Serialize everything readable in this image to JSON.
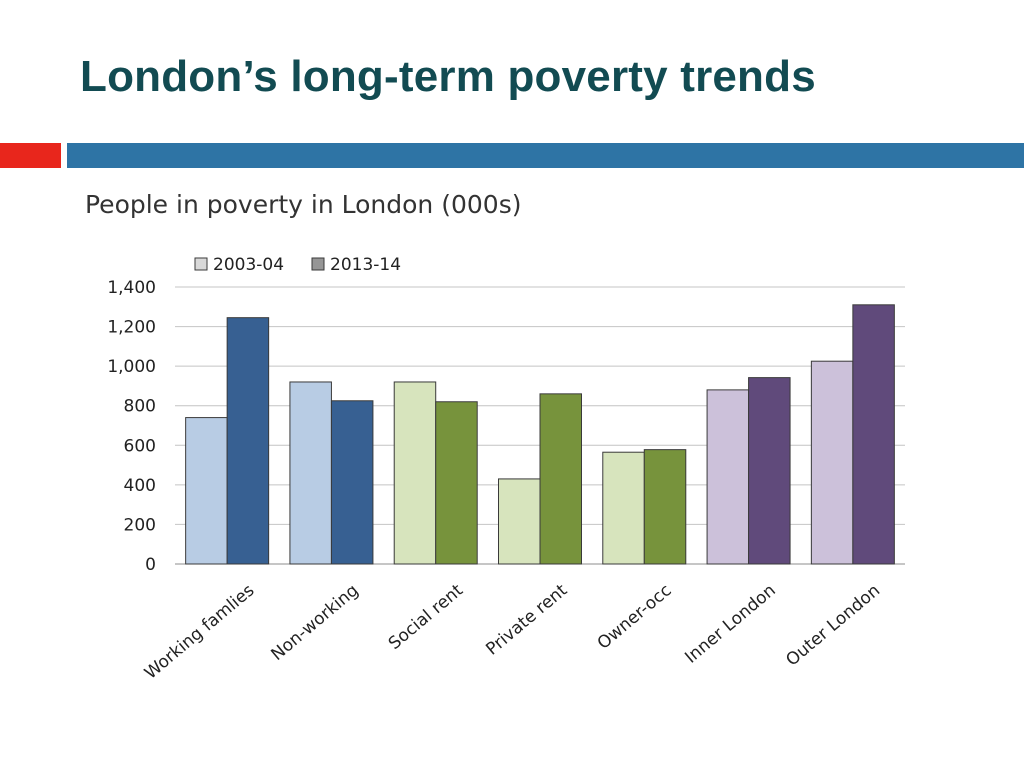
{
  "slide": {
    "title": "London’s long-term poverty trends",
    "subtitle": "People in poverty in London (000s)"
  },
  "colors": {
    "title": "#124b52",
    "accent_red": "#e8261c",
    "accent_blue": "#2e74a5"
  },
  "chart_data": {
    "type": "bar",
    "title": "People in poverty in London (000s)",
    "xlabel": "",
    "ylabel": "",
    "ylim": [
      0,
      1400
    ],
    "yticks": [
      0,
      200,
      400,
      600,
      800,
      1000,
      1200,
      1400
    ],
    "ytick_labels": [
      "0",
      "200",
      "400",
      "600",
      "800",
      "1,000",
      "1,200",
      "1,400"
    ],
    "grid": true,
    "legend_position": "top-left",
    "categories": [
      "Working famlies",
      "Non-working",
      "Social rent",
      "Private rent",
      "Owner-occ",
      "Inner London",
      "Outer London"
    ],
    "series": [
      {
        "name": "2003-04",
        "values": [
          740,
          920,
          920,
          430,
          565,
          880,
          1025
        ],
        "legend_color": "#d9d9d9",
        "colors": [
          "#b8cce4",
          "#b8cce4",
          "#d7e4bd",
          "#d7e4bd",
          "#d7e4bd",
          "#ccc1da",
          "#ccc1da"
        ]
      },
      {
        "name": "2013-14",
        "values": [
          1245,
          825,
          820,
          860,
          578,
          942,
          1310
        ],
        "legend_color": "#969696",
        "colors": [
          "#376092",
          "#376092",
          "#77933c",
          "#77933c",
          "#77933c",
          "#604a7b",
          "#604a7b"
        ]
      }
    ]
  }
}
